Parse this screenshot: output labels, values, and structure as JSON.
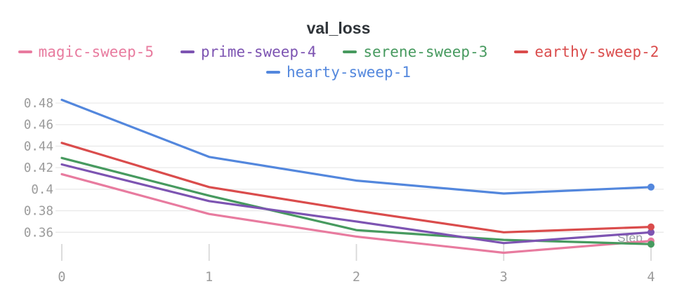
{
  "chart_data": {
    "type": "line",
    "title": "val_loss",
    "xlabel": "Step",
    "x": [
      0,
      1,
      2,
      3,
      4
    ],
    "series": [
      {
        "name": "magic-sweep-5",
        "color": "#E87B9F",
        "values": [
          0.414,
          0.377,
          0.356,
          0.341,
          0.352
        ]
      },
      {
        "name": "prime-sweep-4",
        "color": "#7D54B2",
        "values": [
          0.423,
          0.389,
          0.37,
          0.35,
          0.36
        ]
      },
      {
        "name": "serene-sweep-3",
        "color": "#479A5F",
        "values": [
          0.429,
          0.394,
          0.362,
          0.353,
          0.349
        ]
      },
      {
        "name": "earthy-sweep-2",
        "color": "#DA4C4C",
        "values": [
          0.443,
          0.402,
          0.38,
          0.36,
          0.365
        ]
      },
      {
        "name": "hearty-sweep-1",
        "color": "#5387DD",
        "values": [
          0.483,
          0.43,
          0.408,
          0.396,
          0.402
        ]
      }
    ],
    "yticks": [
      "0.48",
      "0.46",
      "0.44",
      "0.42",
      "0.4",
      "0.38",
      "0.36"
    ],
    "xticks": [
      "0",
      "1",
      "2",
      "3",
      "4"
    ],
    "ylim": [
      0.336,
      0.489
    ],
    "xlim": [
      0,
      4
    ],
    "grid": true,
    "legend_position": "top",
    "end_markers": true,
    "colors": {
      "gridline": "#e9e9e9",
      "tick": "#d9d9d9",
      "axis_text": "#9b9b9b",
      "step_label": "#9aa0a6",
      "title": "#2f3439",
      "background": "#ffffff"
    }
  }
}
